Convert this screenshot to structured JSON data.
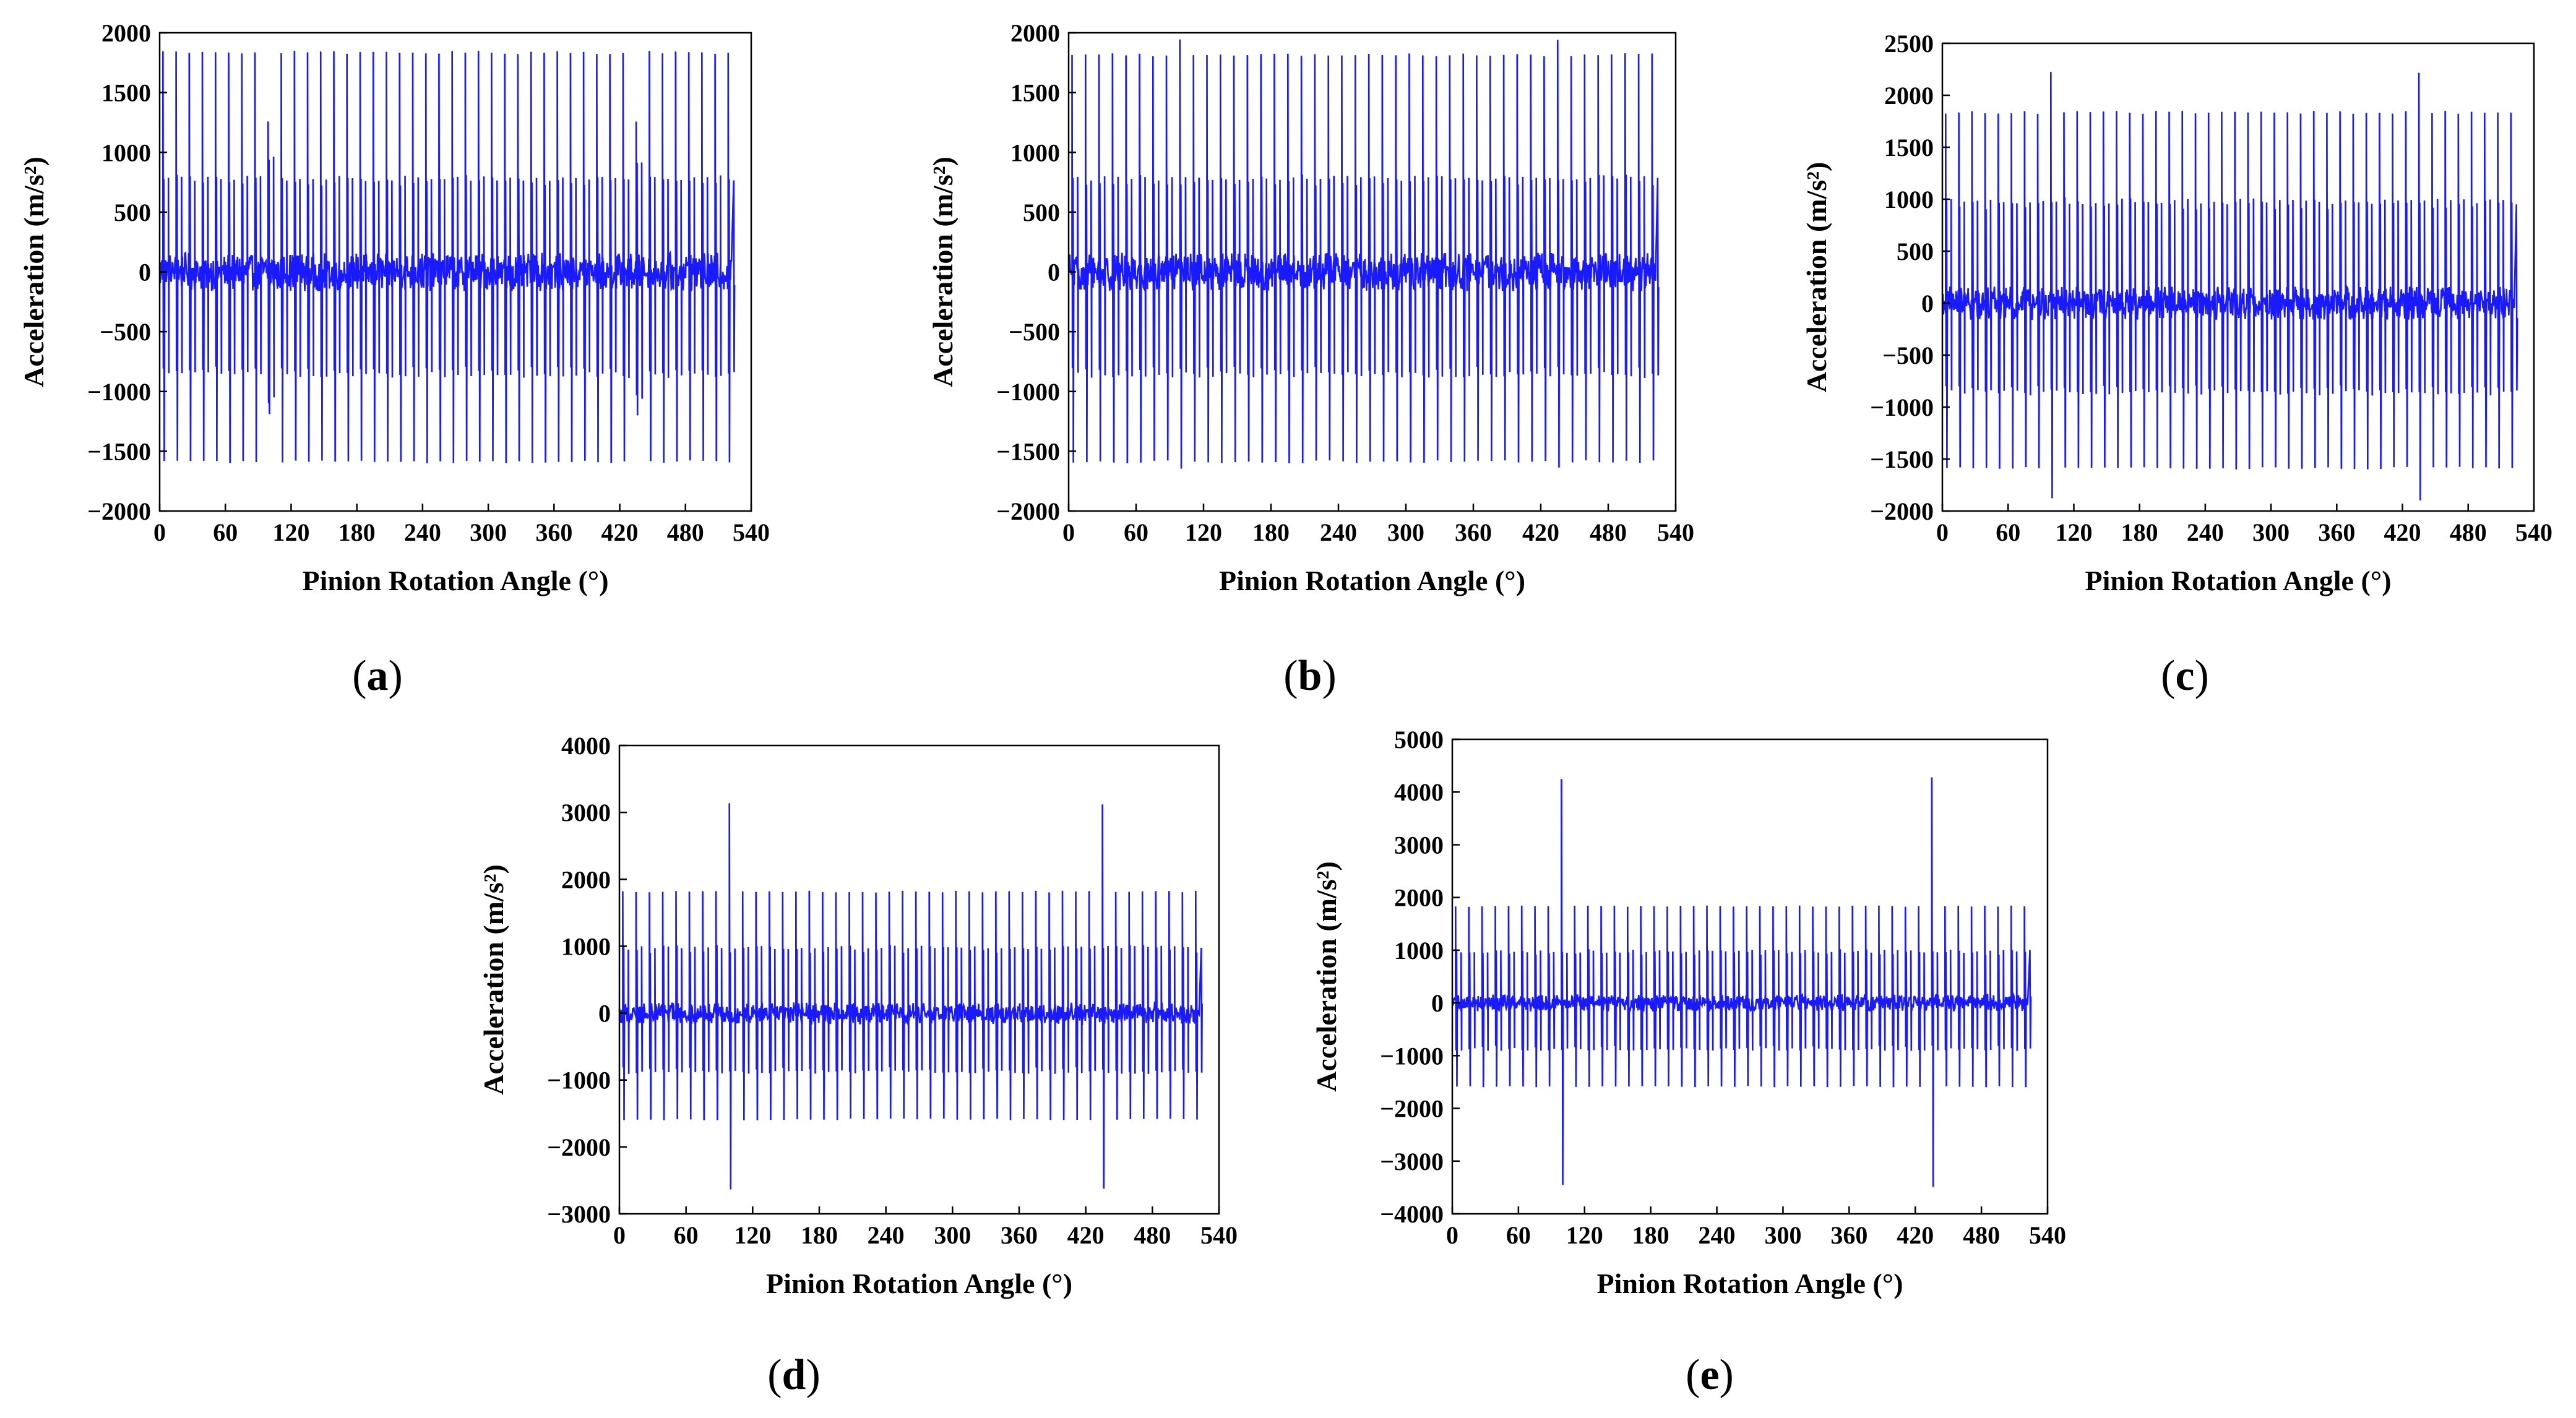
{
  "figure": {
    "line_color": "#1a1aff",
    "axis_color": "#000000"
  },
  "chart_data": [
    {
      "id": "a",
      "type": "line",
      "panel_label": "a",
      "xlabel": "Pinion Rotation Angle (°)",
      "ylabel": "Acceleration (m/s²)",
      "xlim": [
        0,
        540
      ],
      "ylim": [
        -2000,
        2000
      ],
      "xticks": [
        0,
        60,
        120,
        180,
        240,
        300,
        360,
        420,
        480,
        540
      ],
      "yticks": [
        -2000,
        -1500,
        -1000,
        -500,
        0,
        500,
        1000,
        1500,
        2000
      ],
      "ytick_labels": [
        "−2000",
        "−1500",
        "−1000",
        "−500",
        "0",
        "500",
        "1000",
        "1500",
        "2000"
      ],
      "x_range_data": [
        0,
        522
      ],
      "mesh_period_deg": 12,
      "teeth_meshes": 44,
      "series": [
        {
          "peak_positive": 1850,
          "peak_negative": -1600,
          "secondary_positive": 800,
          "secondary_negative": -880,
          "fault_angles": [],
          "fault_peak_positive": 1850,
          "fault_peak_negative": -1600,
          "fault_zone_angles": [
            96,
            432
          ],
          "fault_zone_peak_positive": 1270,
          "fault_zone_peak_negative": -1200
        }
      ]
    },
    {
      "id": "b",
      "type": "line",
      "panel_label": "b",
      "xlabel": "Pinion Rotation Angle (°)",
      "ylabel": "Acceleration (m/s²)",
      "xlim": [
        0,
        540
      ],
      "ylim": [
        -2000,
        2000
      ],
      "xticks": [
        0,
        60,
        120,
        180,
        240,
        300,
        360,
        420,
        480,
        540
      ],
      "yticks": [
        -2000,
        -1500,
        -1000,
        -500,
        0,
        500,
        1000,
        1500,
        2000
      ],
      "ytick_labels": [
        "−2000",
        "−1500",
        "−1000",
        "−500",
        "0",
        "500",
        "1000",
        "1500",
        "2000"
      ],
      "x_range_data": [
        0,
        522
      ],
      "mesh_period_deg": 12,
      "teeth_meshes": 44,
      "series": [
        {
          "peak_positive": 1830,
          "peak_negative": -1600,
          "secondary_positive": 800,
          "secondary_negative": -880,
          "fault_angles": [
            100,
            436
          ],
          "fault_peak_positive": 1950,
          "fault_peak_negative": -1650,
          "fault_zone_angles": [],
          "fault_zone_peak_positive": 1830,
          "fault_zone_peak_negative": -1600
        }
      ]
    },
    {
      "id": "c",
      "type": "line",
      "panel_label": "c",
      "xlabel": "Pinion Rotation Angle (°)",
      "ylabel": "Acceleration (m/s²)",
      "xlim": [
        0,
        540
      ],
      "ylim": [
        -2000,
        2500
      ],
      "xticks": [
        0,
        60,
        120,
        180,
        240,
        300,
        360,
        420,
        480,
        540
      ],
      "yticks": [
        -2000,
        -1500,
        -1000,
        -500,
        0,
        500,
        1000,
        1500,
        2000,
        2500
      ],
      "ytick_labels": [
        "−2000",
        "−1500",
        "−1000",
        "−500",
        "0",
        "500",
        "1000",
        "1500",
        "2000",
        "2500"
      ],
      "x_range_data": [
        0,
        522
      ],
      "mesh_period_deg": 12,
      "teeth_meshes": 44,
      "series": [
        {
          "peak_positive": 1850,
          "peak_negative": -1600,
          "secondary_positive": 1000,
          "secondary_negative": -880,
          "fault_angles": [
            100,
            436
          ],
          "fault_peak_positive": 2250,
          "fault_peak_negative": -1900,
          "fault_zone_angles": [],
          "fault_zone_peak_positive": 1850,
          "fault_zone_peak_negative": -1600
        }
      ]
    },
    {
      "id": "d",
      "type": "line",
      "panel_label": "d",
      "xlabel": "Pinion Rotation Angle (°)",
      "ylabel": "Acceleration (m/s²)",
      "xlim": [
        0,
        540
      ],
      "ylim": [
        -3000,
        4000
      ],
      "xticks": [
        0,
        60,
        120,
        180,
        240,
        300,
        360,
        420,
        480,
        540
      ],
      "yticks": [
        -3000,
        -2000,
        -1000,
        0,
        1000,
        2000,
        3000,
        4000
      ],
      "ytick_labels": [
        "−3000",
        "−2000",
        "−1000",
        "0",
        "1000",
        "2000",
        "3000",
        "4000"
      ],
      "x_range_data": [
        0,
        522
      ],
      "mesh_period_deg": 12,
      "teeth_meshes": 44,
      "series": [
        {
          "peak_positive": 1830,
          "peak_negative": -1600,
          "secondary_positive": 1000,
          "secondary_negative": -900,
          "fault_angles": [
            96,
            432
          ],
          "fault_peak_positive": 3150,
          "fault_peak_negative": -2650,
          "fault_zone_angles": [],
          "fault_zone_peak_positive": 1830,
          "fault_zone_peak_negative": -1600
        }
      ]
    },
    {
      "id": "e",
      "type": "line",
      "panel_label": "e",
      "xlabel": "Pinion Rotation Angle (°)",
      "ylabel": "Acceleration (m/s²)",
      "xlim": [
        0,
        540
      ],
      "ylim": [
        -4000,
        5000
      ],
      "xticks": [
        0,
        60,
        120,
        180,
        240,
        300,
        360,
        420,
        480,
        540
      ],
      "yticks": [
        -4000,
        -3000,
        -2000,
        -1000,
        0,
        1000,
        2000,
        3000,
        4000,
        5000
      ],
      "ytick_labels": [
        "−4000",
        "−3000",
        "−2000",
        "−1000",
        "0",
        "1000",
        "2000",
        "3000",
        "4000",
        "5000"
      ],
      "x_range_data": [
        0,
        522
      ],
      "mesh_period_deg": 12,
      "teeth_meshes": 44,
      "series": [
        {
          "peak_positive": 1850,
          "peak_negative": -1600,
          "secondary_positive": 1000,
          "secondary_negative": -900,
          "fault_angles": [
            96,
            432
          ],
          "fault_peak_positive": 4300,
          "fault_peak_negative": -3500,
          "fault_zone_angles": [],
          "fault_zone_peak_positive": 1850,
          "fault_zone_peak_negative": -1600
        }
      ]
    }
  ]
}
